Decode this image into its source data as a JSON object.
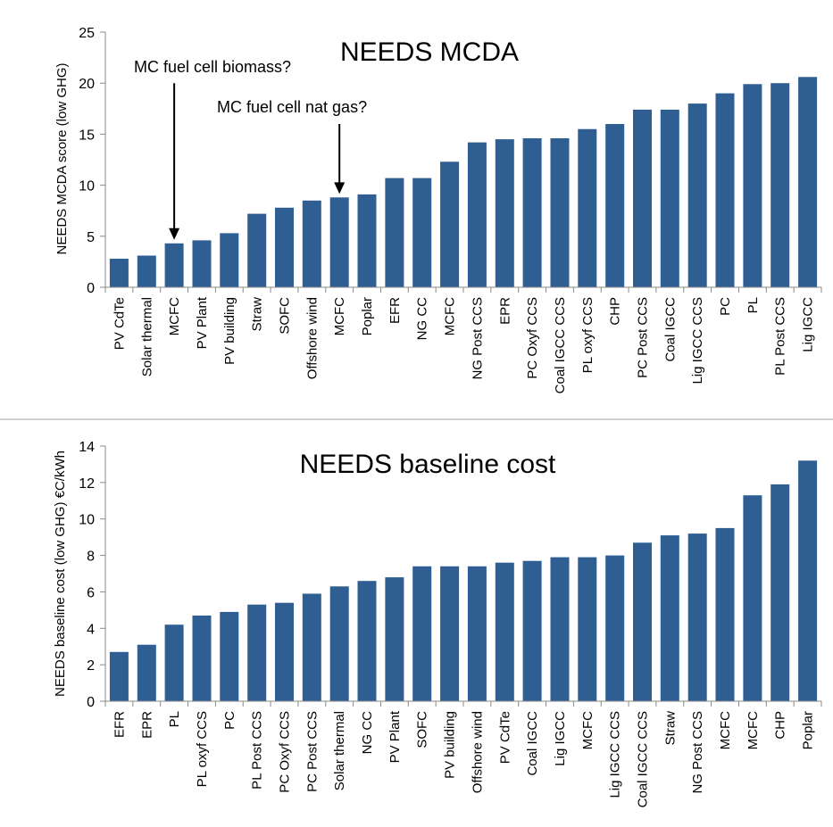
{
  "colors": {
    "bar": "#2e5e92",
    "axis": "#8a8a8a",
    "text": "#000000",
    "divider": "#cfcfcf"
  },
  "chart_data": [
    {
      "type": "bar",
      "title": "NEEDS MCDA",
      "ylabel": "NEEDS MCDA score (low GHG)",
      "ylim": [
        0,
        25
      ],
      "yticks": [
        0,
        5,
        10,
        15,
        20,
        25
      ],
      "grid": false,
      "categories": [
        "PV CdTe",
        "Solar thermal",
        "MCFC",
        "PV Plant",
        "PV building",
        "Straw",
        "SOFC",
        "Offshore wind",
        "MCFC",
        "Poplar",
        "EFR",
        "NG CC",
        "MCFC",
        "NG Post CCS",
        "EPR",
        "PC Oxyf CCS",
        "Coal IGCC CCS",
        "PL oxyf CCS",
        "CHP",
        "PC Post CCS",
        "Coal IGCC",
        "Lig IGCC CCS",
        "PC",
        "PL",
        "PL Post CCS",
        "Lig IGCC"
      ],
      "values": [
        2.8,
        3.1,
        4.3,
        4.6,
        5.3,
        7.2,
        7.8,
        8.5,
        8.8,
        9.1,
        10.7,
        10.7,
        12.3,
        14.2,
        14.5,
        14.6,
        14.6,
        15.5,
        16.0,
        17.4,
        17.4,
        18.0,
        19.0,
        19.9,
        20.0,
        20.6
      ],
      "annotations": [
        {
          "text": "MC fuel cell biomass?",
          "category_index": 2,
          "arrow_from": 20.0
        },
        {
          "text": "MC fuel cell nat gas?",
          "category_index": 8,
          "arrow_from": 16.0
        }
      ]
    },
    {
      "type": "bar",
      "title": "NEEDS baseline cost",
      "ylabel": "NEEDS baseline cost (low GHG) €C/kWh",
      "ylim": [
        0,
        14
      ],
      "yticks": [
        0,
        2,
        4,
        6,
        8,
        10,
        12,
        14
      ],
      "grid": false,
      "categories": [
        "EFR",
        "EPR",
        "PL",
        "PL oxyf CCS",
        "PC",
        "PL Post CCS",
        "PC Oxyf CCS",
        "PC Post CCS",
        "Solar thermal",
        "NG CC",
        "PV Plant",
        "SOFC",
        "PV building",
        "Offshore wind",
        "PV CdTe",
        "Coal IGCC",
        "Lig IGCC",
        "MCFC",
        "Lig IGCC CCS",
        "Coal IGCC CCS",
        "Straw",
        "NG Post CCS",
        "MCFC",
        "MCFC",
        "CHP",
        "Poplar"
      ],
      "values": [
        2.7,
        3.1,
        4.2,
        4.7,
        4.9,
        5.3,
        5.4,
        5.9,
        6.3,
        6.6,
        6.8,
        7.4,
        7.4,
        7.4,
        7.6,
        7.7,
        7.9,
        7.9,
        8.0,
        8.7,
        9.1,
        9.2,
        9.5,
        11.3,
        11.9,
        13.2
      ]
    }
  ]
}
